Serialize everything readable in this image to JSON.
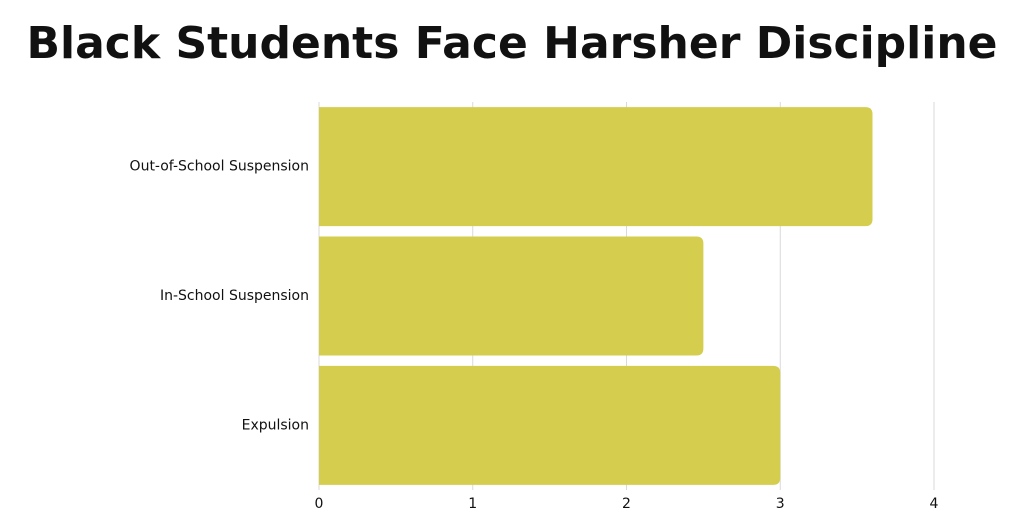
{
  "chart_data": {
    "type": "hbar",
    "title": "Black Students Face Harsher Discipline",
    "categories": [
      "Out-of-School Suspension",
      "In-School Suspension",
      "Expulsion"
    ],
    "values": [
      3.6,
      2.5,
      3
    ],
    "color": "#d5cd4d",
    "xlim": [
      0,
      4
    ],
    "xticks": [
      0,
      1,
      2,
      3,
      4
    ],
    "grid": true
  }
}
